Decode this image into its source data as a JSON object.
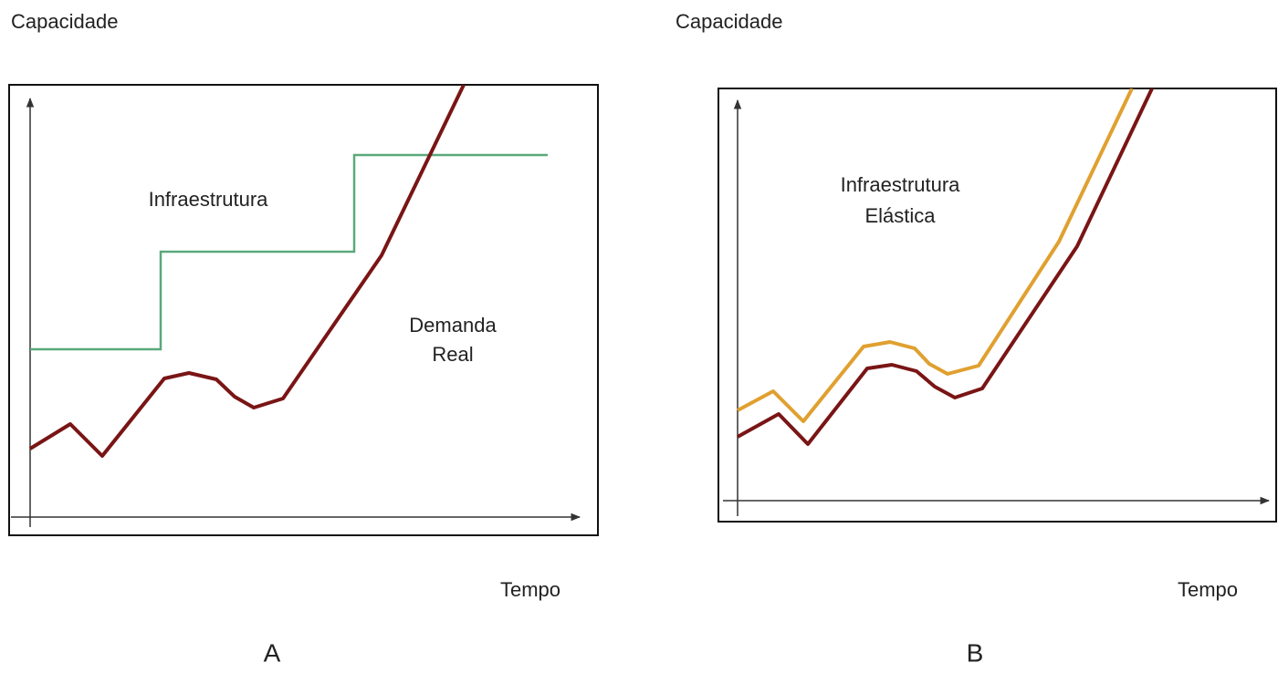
{
  "panels": [
    {
      "capacity_label": "Capacidade",
      "time_label": "Tempo",
      "panel_label": "A",
      "infrastructure_label": [
        "Infraestrutura"
      ],
      "demand_label": [
        "Demanda",
        "Real"
      ]
    },
    {
      "capacity_label": "Capacidade",
      "time_label": "Tempo",
      "panel_label": "B",
      "infrastructure_label": [
        "Infraestrutura",
        "Elástica"
      ]
    }
  ]
}
